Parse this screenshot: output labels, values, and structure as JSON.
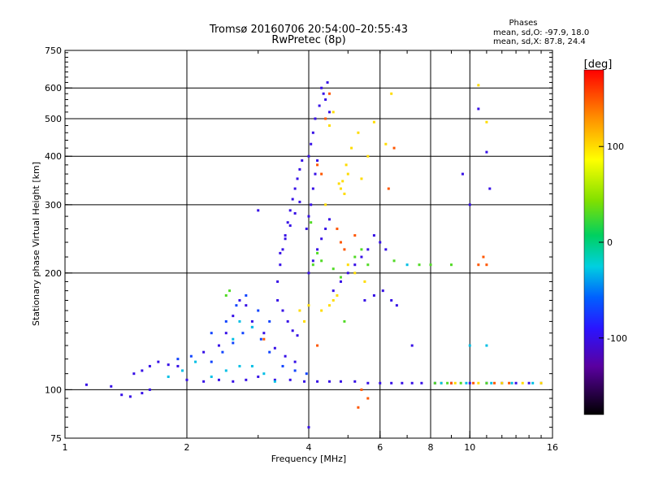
{
  "chart_data": {
    "type": "scatter",
    "title": "Tromsø 20160706 20:54:00–20:55:43",
    "subtitle": "RwPretec (8p)",
    "phases": {
      "heading": "Phases",
      "line_o": "mean, sd,O:  -97.9, 18.0",
      "line_x": "mean, sd,X:  87.8, 24.4"
    },
    "xlabel": "Frequency [MHz]",
    "ylabel": "Stationary phase Virtual Height [km]",
    "x_scale": "log",
    "y_scale": "log",
    "xlim": [
      1,
      16
    ],
    "ylim": [
      75,
      750
    ],
    "x_ticks": [
      {
        "value": 1,
        "label": "1"
      },
      {
        "value": 2,
        "label": "2"
      },
      {
        "value": 4,
        "label": "4"
      },
      {
        "value": 6,
        "label": "6"
      },
      {
        "value": 8,
        "label": "8"
      },
      {
        "value": 10,
        "label": "10"
      },
      {
        "value": 16,
        "label": "16"
      }
    ],
    "x_grid": [
      2,
      4,
      6,
      8,
      10
    ],
    "y_ticks": [
      {
        "value": 75,
        "label": "75"
      },
      {
        "value": 100,
        "label": "100"
      },
      {
        "value": 200,
        "label": "200"
      },
      {
        "value": 300,
        "label": "300"
      },
      {
        "value": 400,
        "label": "400"
      },
      {
        "value": 500,
        "label": "500"
      },
      {
        "value": 600,
        "label": "600"
      },
      {
        "value": 750,
        "label": "750"
      }
    ],
    "y_grid": [
      100,
      200,
      300,
      400,
      500,
      600
    ],
    "colorbar": {
      "label": "[deg]",
      "range": [
        -180,
        180
      ],
      "ticks": [
        {
          "value": 100,
          "label": "100"
        },
        {
          "value": 0,
          "label": "0"
        },
        {
          "value": -100,
          "label": "-100"
        }
      ]
    },
    "grid": true,
    "series": [
      {
        "phase": -100,
        "points": [
          [
            1.13,
            103
          ],
          [
            1.3,
            102
          ],
          [
            1.38,
            97
          ],
          [
            1.45,
            96
          ],
          [
            1.55,
            98
          ],
          [
            1.62,
            100
          ],
          [
            1.48,
            110
          ],
          [
            1.55,
            112
          ],
          [
            1.62,
            115
          ],
          [
            1.7,
            118
          ],
          [
            1.8,
            116
          ],
          [
            1.9,
            115
          ],
          [
            2.0,
            106
          ],
          [
            2.2,
            105
          ],
          [
            2.4,
            106
          ],
          [
            2.6,
            105
          ],
          [
            2.8,
            106
          ],
          [
            3.0,
            108
          ],
          [
            3.3,
            106
          ],
          [
            3.6,
            106
          ],
          [
            3.9,
            105
          ],
          [
            4.2,
            105
          ],
          [
            4.5,
            105
          ],
          [
            4.8,
            105
          ],
          [
            5.2,
            105
          ],
          [
            5.6,
            104
          ],
          [
            6.0,
            104
          ],
          [
            6.4,
            104
          ],
          [
            6.8,
            104
          ],
          [
            7.2,
            104
          ],
          [
            7.6,
            104
          ],
          [
            8.2,
            104
          ],
          [
            9.0,
            104
          ],
          [
            10.0,
            104
          ],
          [
            11.0,
            104
          ],
          [
            12.0,
            104
          ],
          [
            13.0,
            104
          ],
          [
            14.0,
            104
          ],
          [
            15.0,
            104
          ],
          [
            2.2,
            125
          ],
          [
            2.4,
            130
          ],
          [
            2.5,
            140
          ],
          [
            2.6,
            155
          ],
          [
            2.7,
            170
          ],
          [
            2.8,
            165
          ],
          [
            2.9,
            150
          ],
          [
            3.1,
            140
          ],
          [
            3.3,
            128
          ],
          [
            3.5,
            122
          ],
          [
            3.7,
            118
          ],
          [
            3.35,
            170
          ],
          [
            3.45,
            160
          ],
          [
            3.55,
            150
          ],
          [
            3.65,
            142
          ],
          [
            3.75,
            138
          ],
          [
            3.35,
            190
          ],
          [
            3.4,
            210
          ],
          [
            3.45,
            230
          ],
          [
            3.5,
            250
          ],
          [
            3.55,
            270
          ],
          [
            3.6,
            290
          ],
          [
            3.65,
            310
          ],
          [
            3.7,
            330
          ],
          [
            3.75,
            350
          ],
          [
            3.8,
            370
          ],
          [
            3.85,
            390
          ],
          [
            3.4,
            225
          ],
          [
            3.5,
            245
          ],
          [
            3.6,
            265
          ],
          [
            3.7,
            285
          ],
          [
            3.8,
            305
          ],
          [
            3.95,
            260
          ],
          [
            4.0,
            280
          ],
          [
            4.05,
            300
          ],
          [
            4.1,
            330
          ],
          [
            4.15,
            360
          ],
          [
            4.2,
            390
          ],
          [
            4.0,
            400
          ],
          [
            4.05,
            430
          ],
          [
            4.1,
            460
          ],
          [
            4.15,
            500
          ],
          [
            4.25,
            540
          ],
          [
            4.35,
            580
          ],
          [
            4.45,
            620
          ],
          [
            4.3,
            600
          ],
          [
            4.4,
            560
          ],
          [
            4.5,
            520
          ],
          [
            4.0,
            200
          ],
          [
            4.1,
            215
          ],
          [
            4.2,
            230
          ],
          [
            4.3,
            245
          ],
          [
            4.4,
            260
          ],
          [
            4.5,
            275
          ],
          [
            4.6,
            180
          ],
          [
            4.8,
            190
          ],
          [
            5.0,
            200
          ],
          [
            5.2,
            210
          ],
          [
            5.4,
            220
          ],
          [
            5.6,
            230
          ],
          [
            5.8,
            250
          ],
          [
            6.0,
            240
          ],
          [
            6.2,
            230
          ],
          [
            5.5,
            170
          ],
          [
            5.8,
            175
          ],
          [
            6.1,
            180
          ],
          [
            6.4,
            170
          ],
          [
            6.6,
            165
          ],
          [
            7.2,
            130
          ],
          [
            9.6,
            360
          ],
          [
            10.5,
            530
          ],
          [
            11.0,
            410
          ],
          [
            11.2,
            330
          ],
          [
            10.0,
            300
          ],
          [
            3.0,
            290
          ],
          [
            4.0,
            80
          ]
        ]
      },
      {
        "phase": -70,
        "points": [
          [
            1.9,
            120
          ],
          [
            2.05,
            122
          ],
          [
            2.3,
            118
          ],
          [
            2.45,
            125
          ],
          [
            2.6,
            132
          ],
          [
            2.75,
            140
          ],
          [
            2.9,
            145
          ],
          [
            3.05,
            135
          ],
          [
            3.2,
            125
          ],
          [
            3.45,
            115
          ],
          [
            3.7,
            112
          ],
          [
            3.95,
            110
          ],
          [
            2.3,
            140
          ],
          [
            2.5,
            150
          ],
          [
            2.65,
            165
          ],
          [
            2.8,
            175
          ],
          [
            3.0,
            160
          ],
          [
            3.2,
            150
          ]
        ]
      },
      {
        "phase": 100,
        "points": [
          [
            4.6,
            170
          ],
          [
            4.7,
            175
          ],
          [
            4.75,
            340
          ],
          [
            4.8,
            330
          ],
          [
            4.85,
            345
          ],
          [
            4.9,
            320
          ],
          [
            4.95,
            380
          ],
          [
            5.0,
            360
          ],
          [
            5.1,
            420
          ],
          [
            5.3,
            460
          ],
          [
            5.4,
            350
          ],
          [
            5.6,
            400
          ],
          [
            5.8,
            490
          ],
          [
            6.2,
            430
          ],
          [
            6.4,
            580
          ],
          [
            4.3,
            160
          ],
          [
            4.5,
            165
          ],
          [
            4.5,
            480
          ],
          [
            4.6,
            520
          ],
          [
            4.4,
            300
          ],
          [
            5.0,
            210
          ],
          [
            5.2,
            200
          ],
          [
            5.5,
            190
          ],
          [
            10.5,
            610
          ],
          [
            11.0,
            490
          ],
          [
            8.5,
            104
          ],
          [
            9.2,
            104
          ],
          [
            10.5,
            104
          ],
          [
            12.0,
            104
          ],
          [
            13.5,
            104
          ],
          [
            15.0,
            104
          ],
          [
            3.8,
            160
          ],
          [
            3.9,
            150
          ],
          [
            4.0,
            165
          ]
        ]
      },
      {
        "phase": 150,
        "points": [
          [
            4.3,
            360
          ],
          [
            4.4,
            500
          ],
          [
            4.5,
            580
          ],
          [
            4.7,
            260
          ],
          [
            4.9,
            230
          ],
          [
            5.2,
            250
          ],
          [
            6.3,
            330
          ],
          [
            6.5,
            420
          ],
          [
            10.5,
            210
          ],
          [
            10.8,
            220
          ],
          [
            11.0,
            210
          ],
          [
            9.0,
            104
          ],
          [
            10.2,
            104
          ],
          [
            11.5,
            104
          ],
          [
            12.5,
            104
          ],
          [
            4.8,
            240
          ],
          [
            5.4,
            100
          ],
          [
            5.3,
            90
          ],
          [
            5.6,
            95
          ],
          [
            3.1,
            135
          ],
          [
            4.2,
            380
          ],
          [
            4.2,
            130
          ]
        ]
      },
      {
        "phase": 30,
        "points": [
          [
            4.1,
            210
          ],
          [
            4.2,
            225
          ],
          [
            4.3,
            215
          ],
          [
            4.6,
            205
          ],
          [
            4.8,
            195
          ],
          [
            5.2,
            220
          ],
          [
            5.4,
            230
          ],
          [
            5.6,
            210
          ],
          [
            6.5,
            215
          ],
          [
            7.5,
            210
          ],
          [
            8.0,
            210
          ],
          [
            9.0,
            210
          ],
          [
            8.2,
            104
          ],
          [
            8.8,
            104
          ],
          [
            9.5,
            104
          ],
          [
            11.0,
            104
          ],
          [
            2.5,
            175
          ],
          [
            2.55,
            180
          ],
          [
            4.05,
            270
          ],
          [
            4.9,
            150
          ]
        ]
      },
      {
        "phase": -30,
        "points": [
          [
            1.8,
            108
          ],
          [
            1.95,
            112
          ],
          [
            2.1,
            118
          ],
          [
            2.3,
            108
          ],
          [
            2.5,
            112
          ],
          [
            2.7,
            115
          ],
          [
            2.9,
            115
          ],
          [
            3.1,
            110
          ],
          [
            3.3,
            105
          ],
          [
            8.5,
            104
          ],
          [
            9.8,
            104
          ],
          [
            11.3,
            104
          ],
          [
            12.7,
            104
          ],
          [
            14.3,
            104
          ],
          [
            2.6,
            135
          ],
          [
            2.7,
            150
          ],
          [
            2.9,
            145
          ],
          [
            10.0,
            130
          ],
          [
            11.0,
            130
          ],
          [
            7.0,
            210
          ]
        ]
      }
    ]
  }
}
